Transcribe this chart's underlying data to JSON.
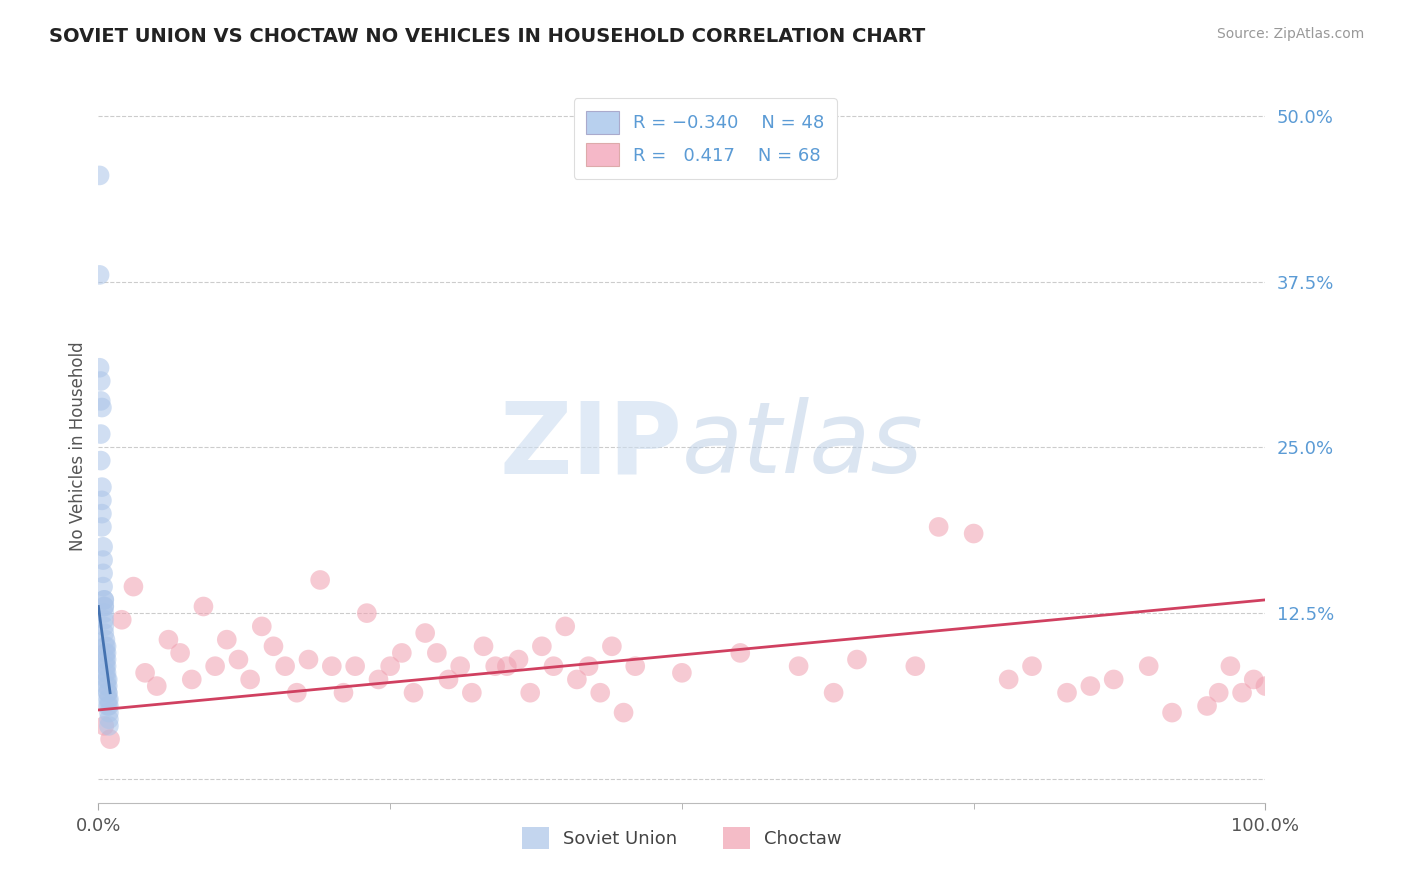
{
  "title": "SOVIET UNION VS CHOCTAW NO VEHICLES IN HOUSEHOLD CORRELATION CHART",
  "source": "Source: ZipAtlas.com",
  "ylabel": "No Vehicles in Household",
  "xlim": [
    0.0,
    1.0
  ],
  "ylim": [
    -0.018,
    0.52
  ],
  "yticks": [
    0.0,
    0.125,
    0.25,
    0.375,
    0.5
  ],
  "ytick_labels": [
    "",
    "12.5%",
    "25.0%",
    "37.5%",
    "50.0%"
  ],
  "xticks": [
    0.0,
    1.0
  ],
  "xtick_labels": [
    "0.0%",
    "100.0%"
  ],
  "soviet_color": "#aac4e8",
  "choctaw_color": "#f0a0b0",
  "trend_soviet_color": "#4472b0",
  "trend_choctaw_color": "#d04060",
  "grid_color": "#cccccc",
  "background_color": "#ffffff",
  "watermark_zip": "ZIP",
  "watermark_atlas": "atlas",
  "soviet_union_label": "Soviet Union",
  "choctaw_label": "Choctaw",
  "soviet_x": [
    0.001,
    0.001,
    0.001,
    0.002,
    0.002,
    0.002,
    0.002,
    0.003,
    0.003,
    0.003,
    0.003,
    0.003,
    0.004,
    0.004,
    0.004,
    0.004,
    0.005,
    0.005,
    0.005,
    0.005,
    0.005,
    0.005,
    0.005,
    0.005,
    0.006,
    0.006,
    0.006,
    0.006,
    0.006,
    0.006,
    0.007,
    0.007,
    0.007,
    0.007,
    0.007,
    0.007,
    0.007,
    0.008,
    0.008,
    0.008,
    0.008,
    0.008,
    0.008,
    0.009,
    0.009,
    0.009,
    0.009,
    0.009
  ],
  "soviet_y": [
    0.455,
    0.38,
    0.31,
    0.285,
    0.26,
    0.3,
    0.24,
    0.22,
    0.21,
    0.2,
    0.19,
    0.28,
    0.175,
    0.165,
    0.155,
    0.145,
    0.135,
    0.135,
    0.13,
    0.125,
    0.12,
    0.115,
    0.13,
    0.11,
    0.1,
    0.095,
    0.09,
    0.105,
    0.085,
    0.08,
    0.1,
    0.095,
    0.09,
    0.085,
    0.08,
    0.075,
    0.07,
    0.075,
    0.07,
    0.065,
    0.065,
    0.06,
    0.055,
    0.06,
    0.055,
    0.05,
    0.045,
    0.04
  ],
  "choctaw_x": [
    0.005,
    0.01,
    0.02,
    0.03,
    0.04,
    0.05,
    0.06,
    0.07,
    0.08,
    0.09,
    0.1,
    0.11,
    0.12,
    0.13,
    0.14,
    0.15,
    0.16,
    0.17,
    0.18,
    0.19,
    0.2,
    0.21,
    0.22,
    0.23,
    0.24,
    0.25,
    0.26,
    0.27,
    0.28,
    0.29,
    0.3,
    0.31,
    0.32,
    0.33,
    0.34,
    0.35,
    0.36,
    0.37,
    0.38,
    0.39,
    0.4,
    0.41,
    0.42,
    0.43,
    0.44,
    0.45,
    0.46,
    0.5,
    0.55,
    0.6,
    0.63,
    0.65,
    0.7,
    0.72,
    0.75,
    0.78,
    0.8,
    0.83,
    0.85,
    0.87,
    0.9,
    0.92,
    0.95,
    0.96,
    0.97,
    0.98,
    0.99,
    1.0
  ],
  "choctaw_y": [
    0.04,
    0.03,
    0.12,
    0.145,
    0.08,
    0.07,
    0.105,
    0.095,
    0.075,
    0.13,
    0.085,
    0.105,
    0.09,
    0.075,
    0.115,
    0.1,
    0.085,
    0.065,
    0.09,
    0.15,
    0.085,
    0.065,
    0.085,
    0.125,
    0.075,
    0.085,
    0.095,
    0.065,
    0.11,
    0.095,
    0.075,
    0.085,
    0.065,
    0.1,
    0.085,
    0.085,
    0.09,
    0.065,
    0.1,
    0.085,
    0.115,
    0.075,
    0.085,
    0.065,
    0.1,
    0.05,
    0.085,
    0.08,
    0.095,
    0.085,
    0.065,
    0.09,
    0.085,
    0.19,
    0.185,
    0.075,
    0.085,
    0.065,
    0.07,
    0.075,
    0.085,
    0.05,
    0.055,
    0.065,
    0.085,
    0.065,
    0.075,
    0.07
  ],
  "choctaw_trend_x0": 0.0,
  "choctaw_trend_y0": 0.052,
  "choctaw_trend_x1": 1.0,
  "choctaw_trend_y1": 0.135,
  "soviet_trend_x0": 0.0,
  "soviet_trend_y0": 0.13,
  "soviet_trend_x1": 0.01,
  "soviet_trend_y1": 0.065
}
